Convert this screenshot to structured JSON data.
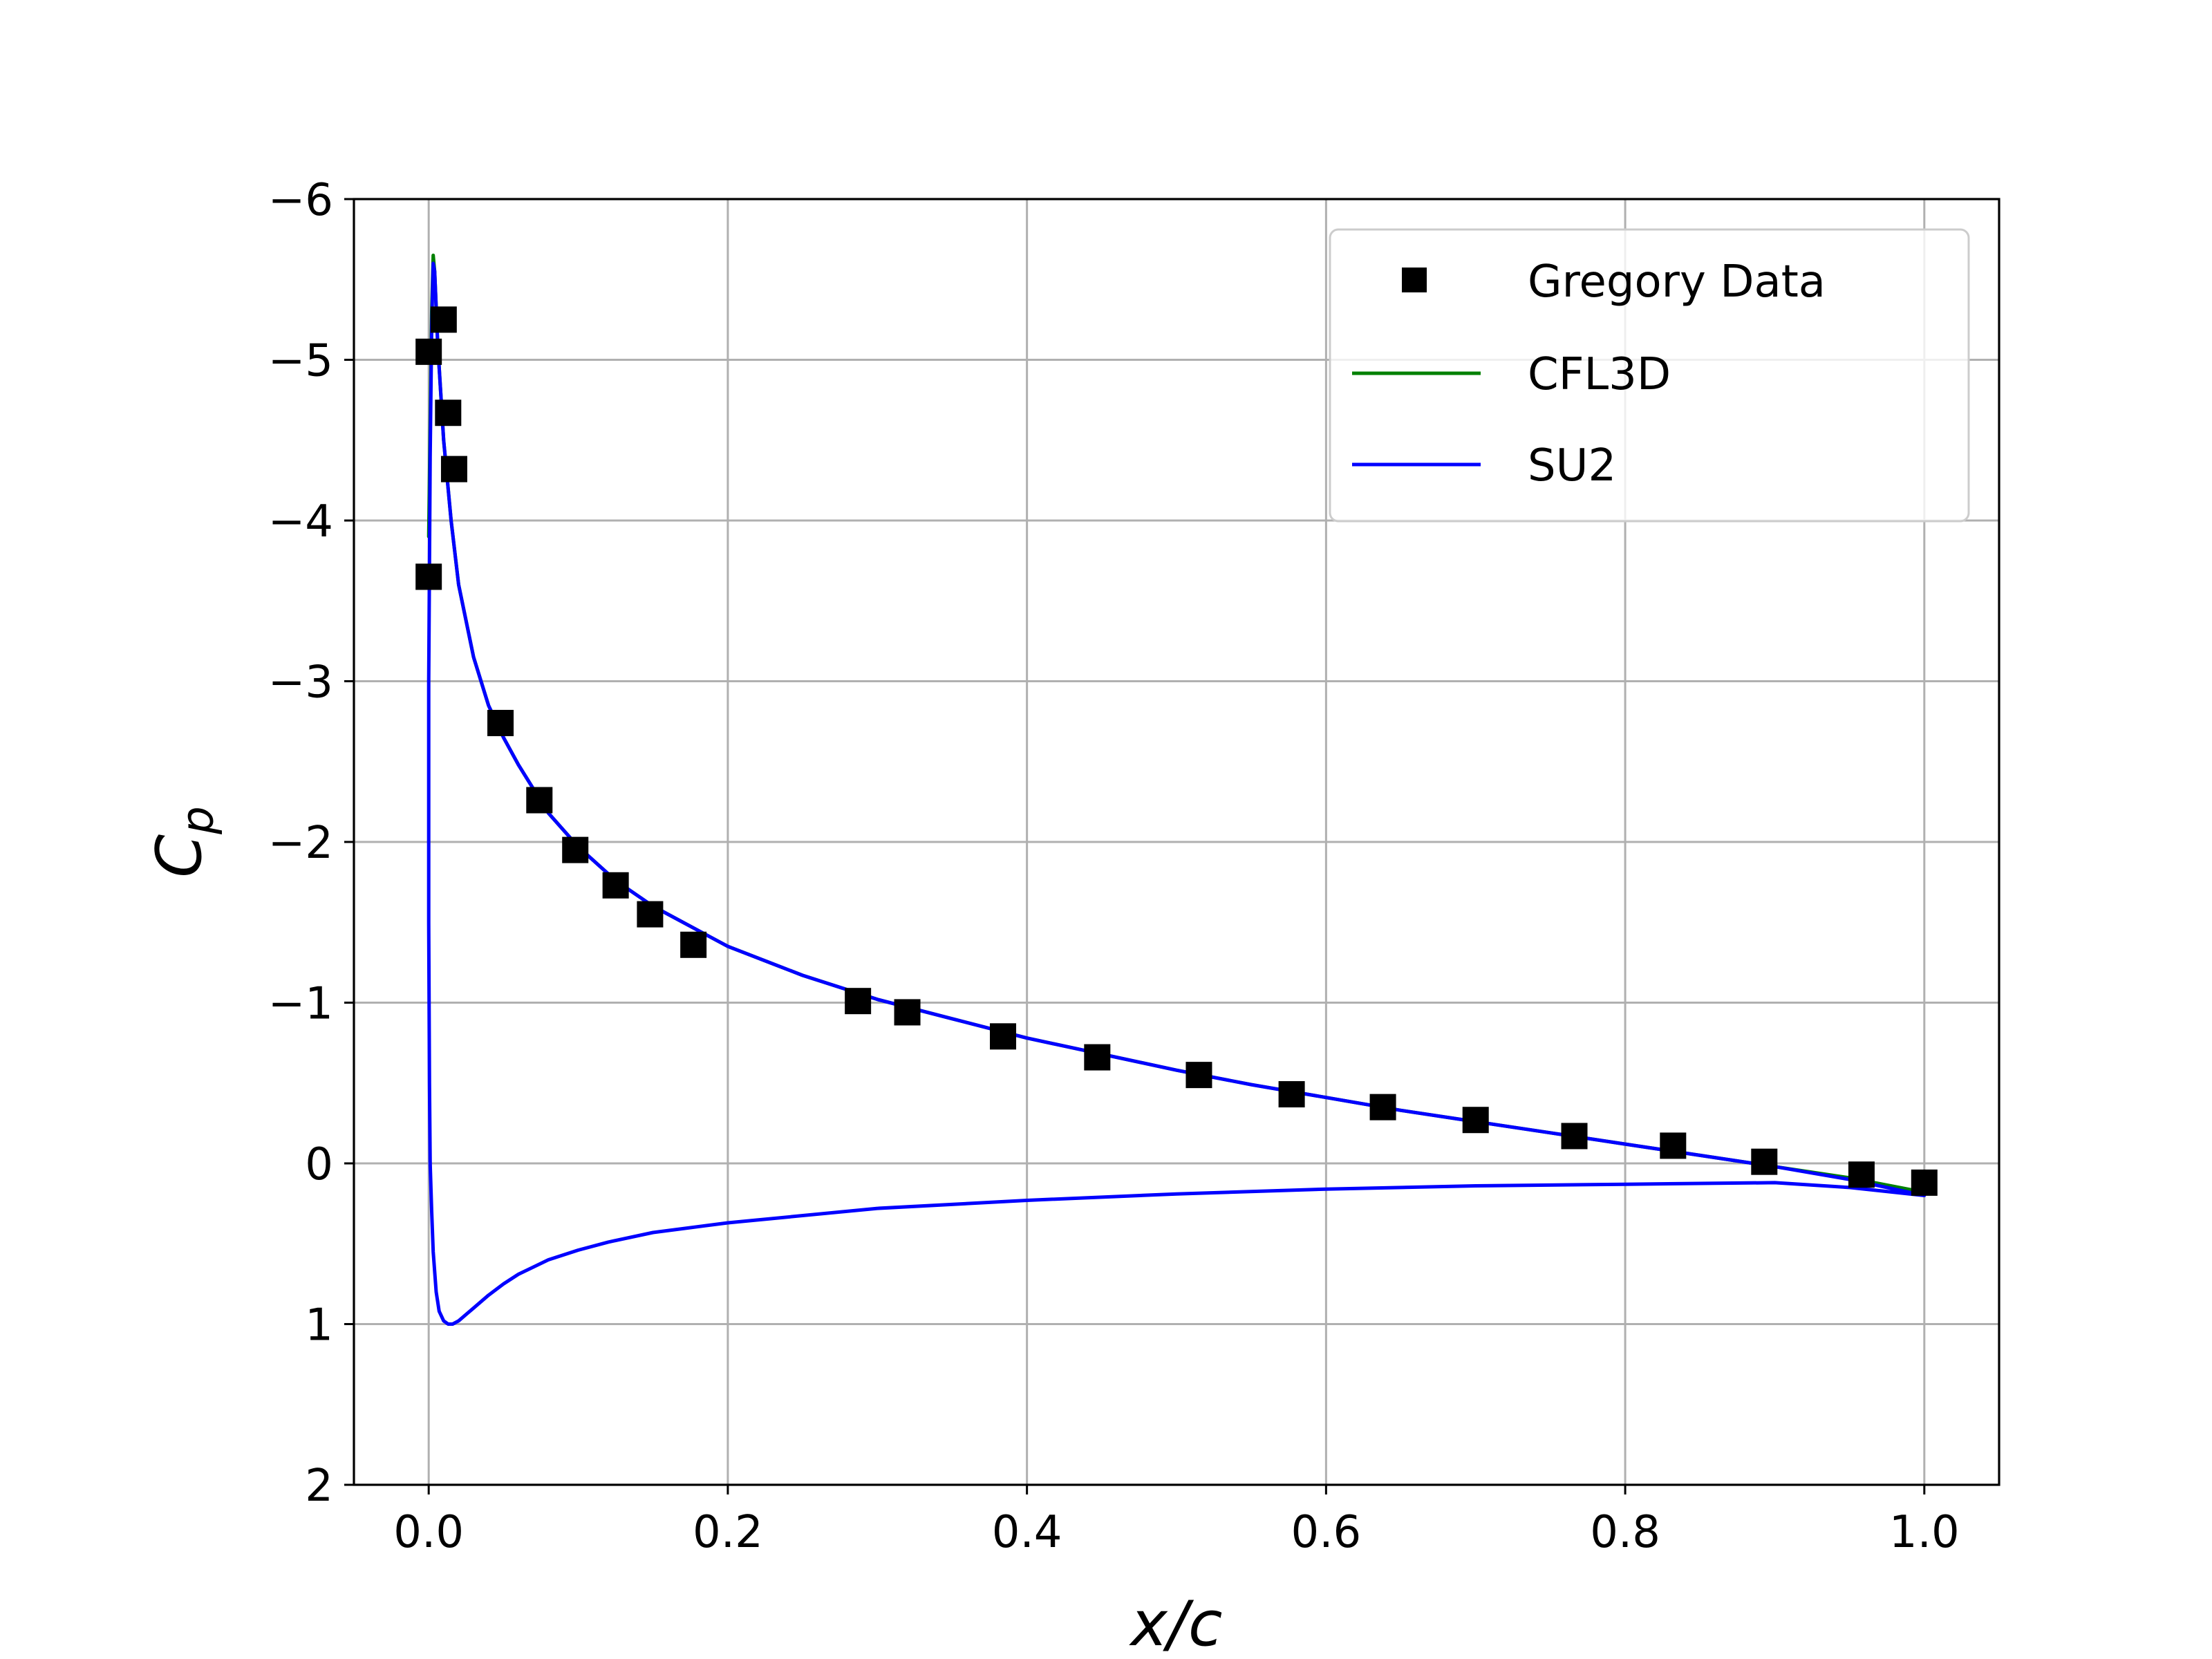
{
  "chart_data": {
    "type": "line",
    "title": "",
    "xlabel": "x/c",
    "ylabel": "C_p",
    "ylabel_main": "C",
    "ylabel_sub": "p",
    "xlim": [
      -0.05,
      1.05
    ],
    "ylim": [
      2,
      -6
    ],
    "y_inverted": true,
    "grid": true,
    "legend_position": "top-right",
    "x_ticks": [
      0.0,
      0.2,
      0.4,
      0.6,
      0.8,
      1.0
    ],
    "x_tick_labels": [
      "0.0",
      "0.2",
      "0.4",
      "0.6",
      "0.8",
      "1.0"
    ],
    "y_ticks": [
      -6,
      -5,
      -4,
      -3,
      -2,
      -1,
      0,
      1,
      2
    ],
    "y_tick_labels": [
      "−6",
      "−5",
      "−4",
      "−3",
      "−2",
      "−1",
      "0",
      "1",
      "2"
    ],
    "series": [
      {
        "name": "Gregory Data",
        "kind": "scatter",
        "marker": "square",
        "color": "#000000",
        "x": [
          0.0,
          0.0,
          0.01,
          0.013,
          0.017,
          0.048,
          0.074,
          0.098,
          0.125,
          0.148,
          0.177,
          0.287,
          0.32,
          0.384,
          0.447,
          0.515,
          0.577,
          0.638,
          0.7,
          0.766,
          0.832,
          0.893,
          0.958,
          1.0
        ],
        "y": [
          -3.65,
          -5.05,
          -5.25,
          -4.67,
          -4.32,
          -2.74,
          -2.26,
          -1.95,
          -1.73,
          -1.55,
          -1.36,
          -1.01,
          -0.94,
          -0.79,
          -0.66,
          -0.55,
          -0.43,
          -0.35,
          -0.27,
          -0.17,
          -0.11,
          -0.01,
          0.07,
          0.12
        ]
      },
      {
        "name": "CFL3D",
        "kind": "line",
        "color": "#008000",
        "x": [
          0.0,
          0.001,
          0.002,
          0.003,
          0.004,
          0.006,
          0.01,
          0.015,
          0.02,
          0.03,
          0.04,
          0.05,
          0.06,
          0.08,
          0.1,
          0.125,
          0.15,
          0.2,
          0.25,
          0.3,
          0.35,
          0.4,
          0.45,
          0.5,
          0.55,
          0.6,
          0.65,
          0.7,
          0.75,
          0.8,
          0.85,
          0.9,
          0.95,
          1.0
        ],
        "y": [
          -3.9,
          -4.6,
          -5.3,
          -5.65,
          -5.55,
          -5.1,
          -4.5,
          -4.0,
          -3.6,
          -3.15,
          -2.85,
          -2.65,
          -2.48,
          -2.18,
          -1.97,
          -1.76,
          -1.6,
          -1.35,
          -1.17,
          -1.02,
          -0.9,
          -0.78,
          -0.68,
          -0.58,
          -0.49,
          -0.41,
          -0.33,
          -0.26,
          -0.19,
          -0.12,
          -0.05,
          0.02,
          0.09,
          0.18
        ]
      },
      {
        "name": "SU2",
        "kind": "line",
        "color": "#0000ff",
        "x": [
          1.0,
          0.95,
          0.9,
          0.85,
          0.8,
          0.75,
          0.7,
          0.65,
          0.6,
          0.55,
          0.5,
          0.45,
          0.4,
          0.35,
          0.3,
          0.25,
          0.2,
          0.15,
          0.125,
          0.1,
          0.08,
          0.06,
          0.05,
          0.04,
          0.03,
          0.02,
          0.015,
          0.01,
          0.006,
          0.004,
          0.003,
          0.002,
          0.001,
          0.0,
          0.0,
          0.0005,
          0.001,
          0.002,
          0.003,
          0.005,
          0.007,
          0.01,
          0.013,
          0.016,
          0.02,
          0.025,
          0.03,
          0.04,
          0.05,
          0.06,
          0.08,
          0.1,
          0.12,
          0.15,
          0.2,
          0.3,
          0.4,
          0.5,
          0.6,
          0.7,
          0.8,
          0.9,
          0.95,
          1.0
        ],
        "y": [
          0.2,
          0.1,
          0.02,
          -0.05,
          -0.12,
          -0.19,
          -0.26,
          -0.33,
          -0.41,
          -0.49,
          -0.58,
          -0.68,
          -0.78,
          -0.9,
          -1.02,
          -1.17,
          -1.35,
          -1.6,
          -1.76,
          -1.97,
          -2.18,
          -2.48,
          -2.65,
          -2.85,
          -3.15,
          -3.6,
          -4.0,
          -4.5,
          -5.1,
          -5.55,
          -5.6,
          -5.2,
          -4.4,
          -3.0,
          -1.5,
          -0.5,
          0.0,
          0.3,
          0.55,
          0.8,
          0.92,
          0.98,
          1.0,
          1.0,
          0.98,
          0.94,
          0.9,
          0.82,
          0.75,
          0.69,
          0.6,
          0.54,
          0.49,
          0.43,
          0.37,
          0.28,
          0.23,
          0.19,
          0.16,
          0.14,
          0.13,
          0.12,
          0.15,
          0.2
        ]
      }
    ]
  }
}
